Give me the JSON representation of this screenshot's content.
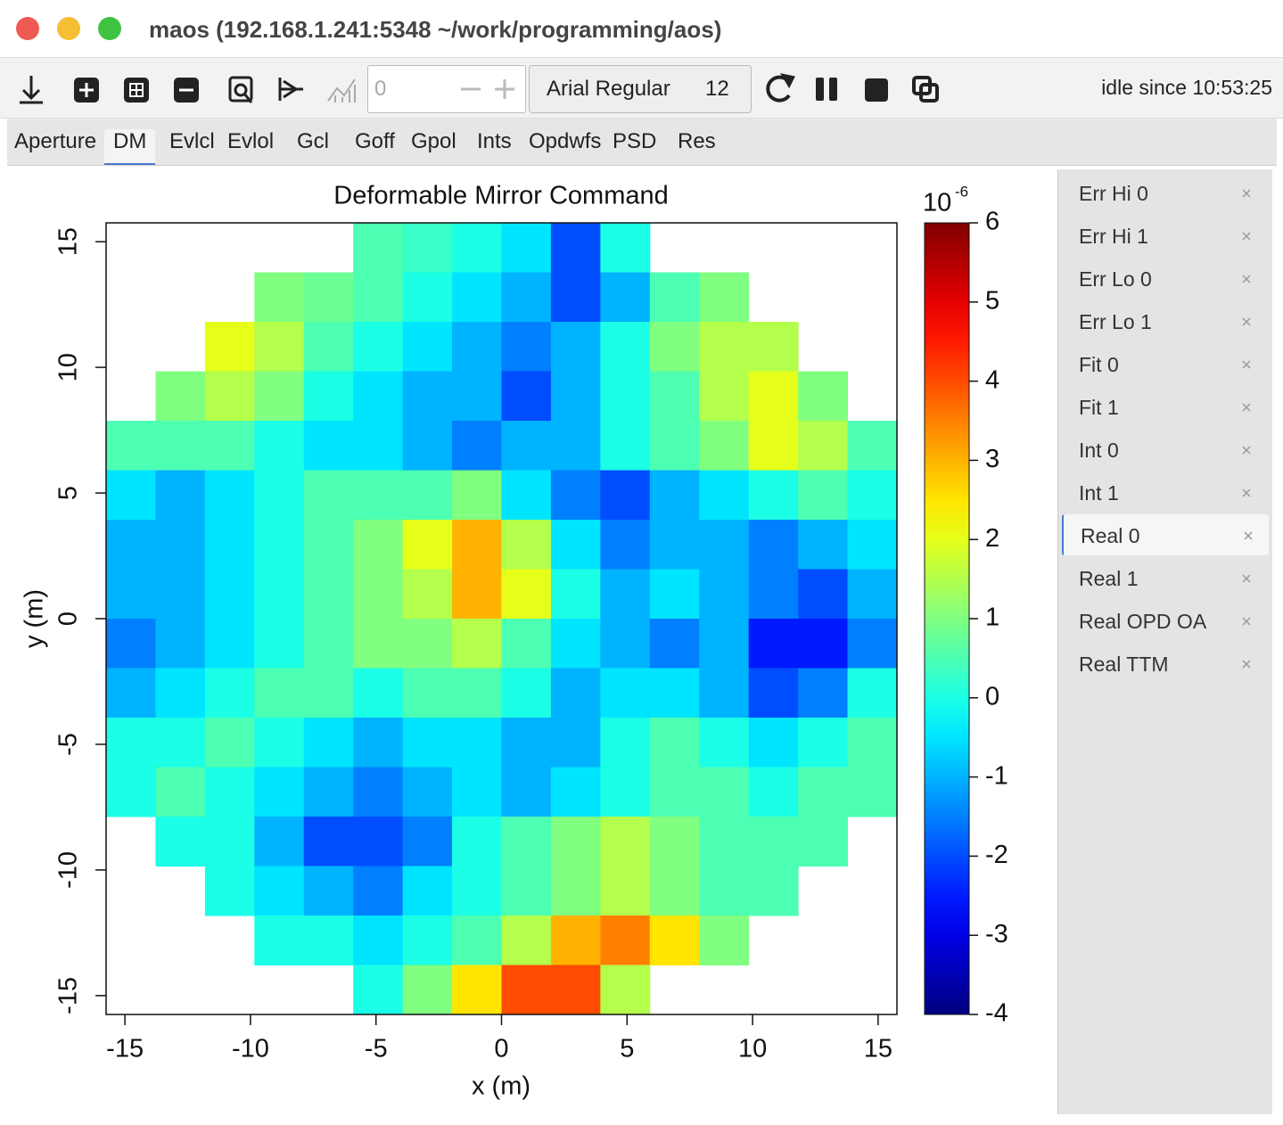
{
  "window": {
    "title": "maos (192.168.1.241:5348 ~/work/programming/aos)"
  },
  "toolbar": {
    "counter": "0",
    "font_name": "Arial Regular",
    "font_size": "12",
    "status": "idle since 10:53:25"
  },
  "tabs": {
    "items": [
      "Aperture",
      "DM",
      "Evlcl",
      "Evlol",
      "Gcl",
      "Goff",
      "Gpol",
      "Ints",
      "Opdwfs",
      "PSD",
      "Res"
    ],
    "selected": 1
  },
  "sidebar": {
    "items": [
      "Err Hi 0",
      "Err Hi 1",
      "Err Lo 0",
      "Err Lo 1",
      "Fit 0",
      "Fit 1",
      "Int 0",
      "Int 1",
      "Real 0",
      "Real 1",
      "Real OPD OA",
      "Real TTM"
    ],
    "selected": 8
  },
  "chart_data": {
    "type": "heatmap",
    "title": "Deformable Mirror Command",
    "x_label": "x (m)",
    "y_label": "y (m)",
    "xlim": [
      -15.75,
      15.75
    ],
    "ylim": [
      -15.75,
      15.75
    ],
    "xticks": [
      -15,
      -10,
      -5,
      0,
      5,
      10,
      15
    ],
    "yticks": [
      -15,
      -10,
      -5,
      0,
      5,
      10,
      15
    ],
    "colormap": "jet",
    "zlim": [
      -4,
      6
    ],
    "zticks": [
      -4,
      -3,
      -2,
      -1,
      0,
      1,
      2,
      3,
      4,
      5,
      6
    ],
    "colorbar_label": "10",
    "colorbar_exponent": "-6",
    "z": [
      [
        null,
        null,
        null,
        null,
        null,
        0.5,
        0.3,
        0,
        -0.5,
        -2,
        0,
        null,
        null,
        null,
        null,
        null
      ],
      [
        null,
        null,
        null,
        1,
        0.8,
        0.5,
        0,
        -0.5,
        -1,
        -2,
        -1,
        0.5,
        1,
        null,
        null,
        null
      ],
      [
        null,
        null,
        2,
        1.5,
        0.5,
        0,
        -0.5,
        -1,
        -1.5,
        -1,
        0,
        1,
        1.5,
        1.5,
        null,
        null
      ],
      [
        null,
        1,
        1.5,
        1,
        0,
        -0.5,
        -1,
        -1,
        -2,
        -1,
        0,
        0.5,
        1.5,
        2,
        1,
        null
      ],
      [
        0.5,
        0.5,
        0.5,
        0,
        -0.5,
        -0.5,
        -1,
        -1.5,
        -1,
        -1,
        0,
        0.5,
        1,
        2,
        1.5,
        0.5
      ],
      [
        -0.5,
        -1,
        -0.5,
        0,
        0.5,
        0.5,
        0.5,
        1,
        -0.5,
        -1.5,
        -2,
        -1,
        -0.5,
        0,
        0.5,
        0
      ],
      [
        -1,
        -1,
        -0.5,
        0,
        0.5,
        1,
        2,
        3,
        1.5,
        -0.5,
        -1.5,
        -1,
        -1,
        -1.5,
        -1,
        -0.5
      ],
      [
        -1,
        -1,
        -0.5,
        0,
        0.5,
        1,
        1.5,
        3,
        2,
        0,
        -1,
        -0.5,
        -1,
        -1.5,
        -2,
        -1
      ],
      [
        -1.5,
        -1,
        -0.5,
        0,
        0.5,
        1,
        1,
        1.5,
        0.5,
        -0.5,
        -1,
        -1.5,
        -1,
        -2.5,
        -2.5,
        -1.5
      ],
      [
        -1,
        -0.5,
        0,
        0.5,
        0.5,
        0,
        0.5,
        0.5,
        0,
        -1,
        -0.5,
        -0.5,
        -1,
        -2,
        -1.5,
        0
      ],
      [
        0,
        0,
        0.5,
        0,
        -0.5,
        -1,
        -0.5,
        -0.5,
        -1,
        -1,
        0,
        0.5,
        0,
        -0.5,
        0,
        0.5
      ],
      [
        0,
        0.5,
        0,
        -0.5,
        -1,
        -1.5,
        -1,
        -0.5,
        -1,
        -0.5,
        0,
        0.5,
        0.5,
        0,
        0.5,
        0.5
      ],
      [
        null,
        0,
        0,
        -1,
        -2,
        -2,
        -1.5,
        0,
        0.5,
        1,
        1.5,
        1,
        0.5,
        0.5,
        0.5,
        null
      ],
      [
        null,
        null,
        0,
        -0.5,
        -1,
        -1.5,
        -0.5,
        0,
        0.5,
        1,
        1.5,
        1,
        0.5,
        0.5,
        null,
        null
      ],
      [
        null,
        null,
        null,
        0,
        0,
        -0.5,
        0,
        0.5,
        1.5,
        3,
        3.5,
        2.5,
        1,
        null,
        null,
        null
      ],
      [
        null,
        null,
        null,
        null,
        null,
        0,
        1,
        2.5,
        4,
        4,
        1.5,
        null,
        null,
        null,
        null,
        null
      ]
    ]
  }
}
